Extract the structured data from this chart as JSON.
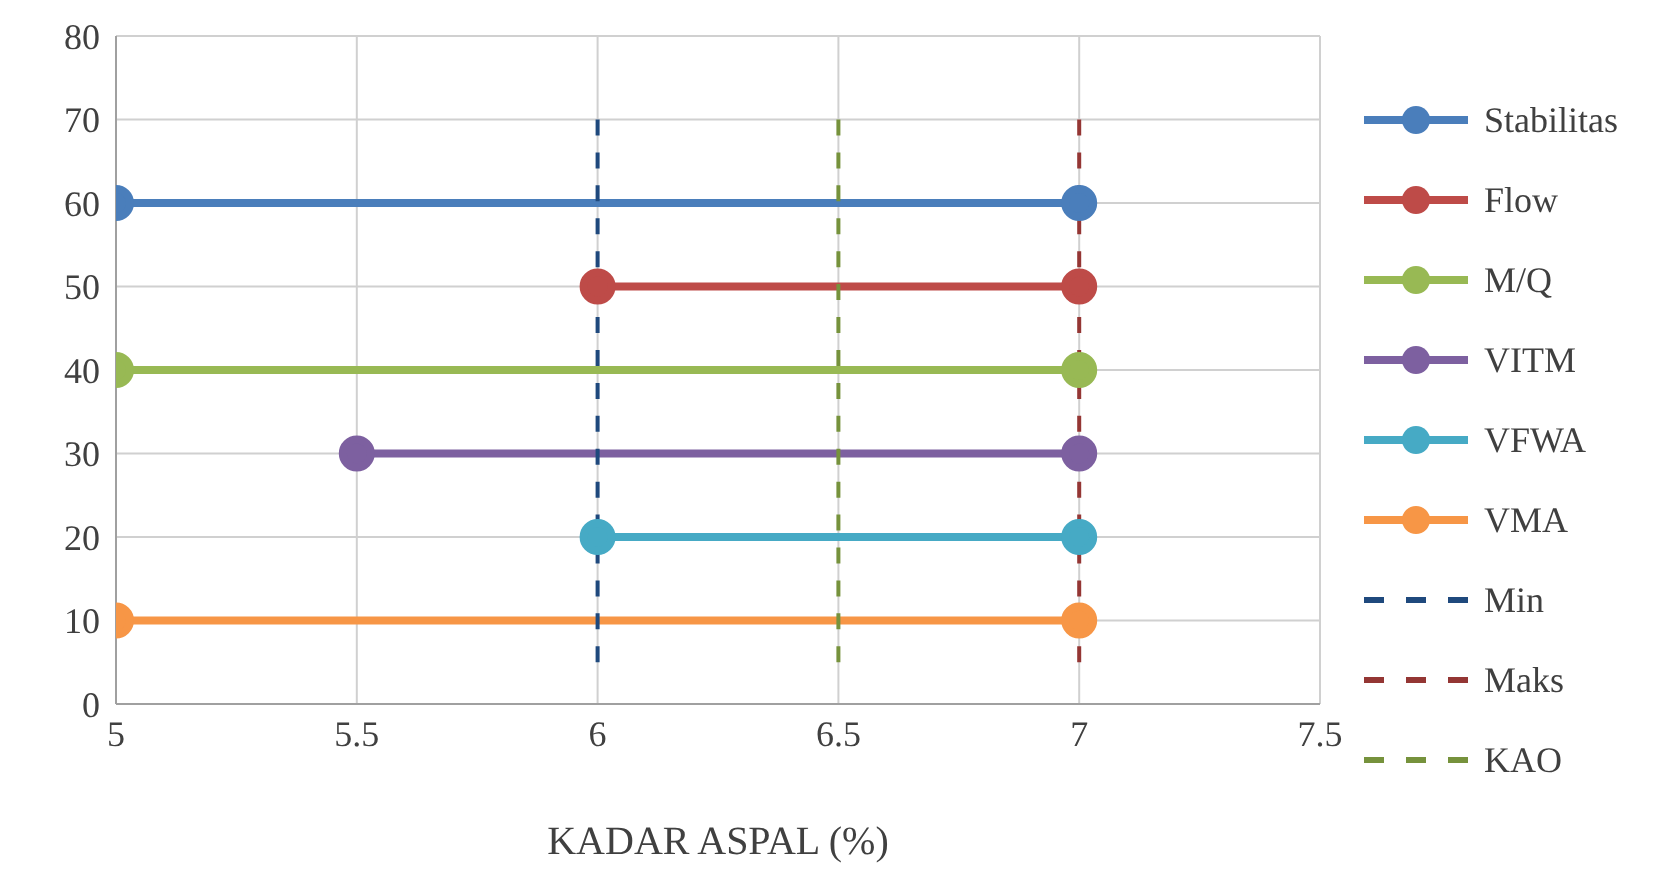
{
  "chart_data": {
    "type": "line",
    "xlabel": "KADAR ASPAL (%)",
    "xlim": [
      5,
      7.5
    ],
    "xticks": [
      5,
      5.5,
      6,
      6.5,
      7,
      7.5
    ],
    "ylim": [
      0,
      80
    ],
    "yticks": [
      0,
      10,
      20,
      30,
      40,
      50,
      60,
      70,
      80
    ],
    "grid": true,
    "legend": "right",
    "marker": "circle",
    "series": [
      {
        "name": "Stabilitas",
        "color": "#4a7ebb",
        "x": [
          5,
          7
        ],
        "values": [
          60,
          60
        ]
      },
      {
        "name": "Flow",
        "color": "#be4b48",
        "x": [
          6,
          7
        ],
        "values": [
          50,
          50
        ]
      },
      {
        "name": "M/Q",
        "color": "#98b954",
        "x": [
          5,
          7
        ],
        "values": [
          40,
          40
        ]
      },
      {
        "name": "VITM",
        "color": "#7d60a0",
        "x": [
          5.5,
          7
        ],
        "values": [
          30,
          30
        ]
      },
      {
        "name": "VFWA",
        "color": "#46aac5",
        "x": [
          6,
          7
        ],
        "values": [
          20,
          20
        ]
      },
      {
        "name": "VMA",
        "color": "#f79646",
        "x": [
          5,
          7
        ],
        "values": [
          10,
          10
        ]
      },
      {
        "name": "Min",
        "color": "#1f497d",
        "x": [
          6,
          6
        ],
        "values": [
          5,
          70
        ],
        "line_style": "dashed",
        "marker": "none"
      },
      {
        "name": "Maks",
        "color": "#943634",
        "x": [
          7,
          7
        ],
        "values": [
          5,
          70
        ],
        "line_style": "dashed",
        "marker": "none"
      },
      {
        "name": "KAO",
        "color": "#76923c",
        "x": [
          6.5,
          6.5
        ],
        "values": [
          5,
          70
        ],
        "line_style": "dashed",
        "marker": "none"
      }
    ]
  }
}
